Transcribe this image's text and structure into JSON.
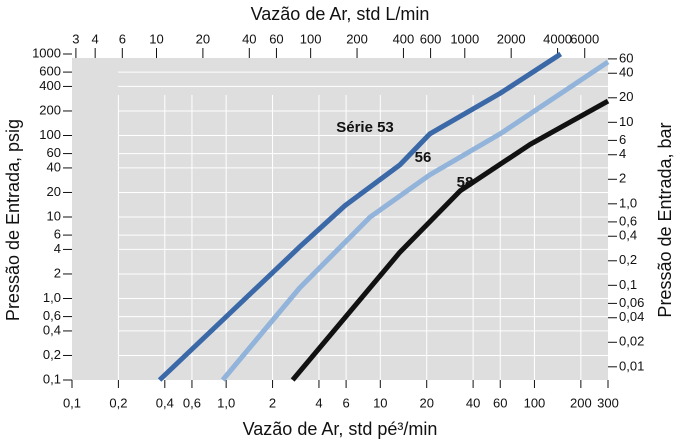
{
  "chart_data": {
    "type": "line",
    "title": "Vazão de Ar, std L/min",
    "x_label": "Vazão de Ar, std pé³/min",
    "y_label": "Pressão de Entrada, psig",
    "y2_label": "Pressão de Entrada, bar",
    "log_x": true,
    "log_y": true,
    "grid": true,
    "xlim": [
      0.1,
      300
    ],
    "ylim": [
      0.1,
      1000
    ],
    "x2lim": [
      2.83,
      8495
    ],
    "y2lim": [
      0.00689,
      68.9
    ],
    "xticks": [
      {
        "value": 0.1,
        "label": "0,1"
      },
      {
        "value": 0.2,
        "label": "0,2"
      },
      {
        "value": 0.4,
        "label": "0,4"
      },
      {
        "value": 0.6,
        "label": "0,6"
      },
      {
        "value": 1,
        "label": "1,0"
      },
      2,
      4,
      6,
      10,
      20,
      40,
      60,
      100,
      200,
      300
    ],
    "yticks": [
      {
        "value": 0.1,
        "label": "0,1"
      },
      {
        "value": 0.2,
        "label": "0,2"
      },
      {
        "value": 0.4,
        "label": "0,4"
      },
      {
        "value": 0.6,
        "label": "0,6"
      },
      {
        "value": 1,
        "label": "1,0"
      },
      2,
      4,
      6,
      10,
      20,
      40,
      60,
      100,
      200,
      400,
      600,
      1000
    ],
    "x2ticks": [
      3,
      4,
      6,
      10,
      20,
      40,
      60,
      100,
      200,
      400,
      600,
      1000,
      2000,
      4000,
      6000
    ],
    "y2ticks": [
      {
        "value": 0.01,
        "label": "0,01"
      },
      {
        "value": 0.02,
        "label": "0,02"
      },
      {
        "value": 0.04,
        "label": "0,04"
      },
      {
        "value": 0.06,
        "label": "0,06"
      },
      {
        "value": 0.1,
        "label": "0,1"
      },
      {
        "value": 0.2,
        "label": "0,2"
      },
      {
        "value": 0.4,
        "label": "0,4"
      },
      {
        "value": 0.6,
        "label": "0,6"
      },
      {
        "value": 1,
        "label": "1,0"
      },
      2,
      4,
      6,
      10,
      20,
      40,
      60
    ],
    "series": [
      {
        "name": "Série 53",
        "color": "#3b69a8",
        "x": [
          0.37,
          3.0,
          5.9,
          13.4,
          21,
          60,
          148
        ],
        "values": [
          0.1,
          4.3,
          13.8,
          43.6,
          105,
          330,
          1000
        ]
      },
      {
        "name": "56",
        "color": "#92b3da",
        "x": [
          0.95,
          3.0,
          8.6,
          21,
          60,
          300
        ],
        "values": [
          0.1,
          1.35,
          10,
          33,
          105,
          800
        ]
      },
      {
        "name": "58",
        "color": "#111111",
        "x": [
          2.7,
          13.4,
          33,
          94,
          300
        ],
        "values": [
          0.1,
          3.7,
          21,
          78,
          265
        ]
      }
    ]
  }
}
